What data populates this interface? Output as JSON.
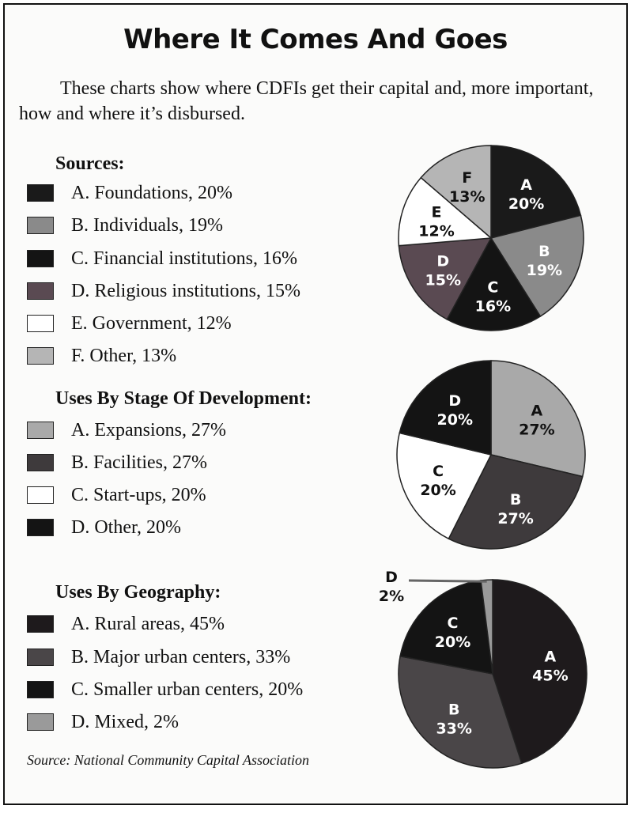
{
  "title": "Where It Comes And Goes",
  "intro": "These charts show where CDFIs get their capital and, more important, how and where it’s disbursed.",
  "source": "Source: National Community Capital Association",
  "colors": {
    "A_dark": "#1a1a1a",
    "B_gray": "#8a8a8a",
    "C_black": "#141414",
    "D_maroon": "#5a4a52",
    "E_white": "#ffffff",
    "F_light": "#b5b5b5"
  },
  "chart_data": [
    {
      "type": "pie",
      "title": "Sources:",
      "categories": [
        "A. Foundations, 20%",
        "B. Individuals, 19%",
        "C. Financial institutions, 16%",
        "D. Religious institutions, 15%",
        "E. Government, 12%",
        "F. Other, 13%"
      ],
      "letters": [
        "A",
        "B",
        "C",
        "D",
        "E",
        "F"
      ],
      "values": [
        20,
        19,
        16,
        15,
        12,
        13
      ],
      "value_labels": [
        "20%",
        "19%",
        "16%",
        "15%",
        "12%",
        "13%"
      ],
      "colors": [
        "#1a1a1a",
        "#8a8a8a",
        "#141414",
        "#5a4a52",
        "#ffffff",
        "#b5b5b5"
      ],
      "label_colors": [
        "#ffffff",
        "#ffffff",
        "#ffffff",
        "#ffffff",
        "#111111",
        "#111111"
      ]
    },
    {
      "type": "pie",
      "title": "Uses By Stage Of Development:",
      "categories": [
        "A. Expansions, 27%",
        "B. Facilities, 27%",
        "C. Start-ups, 20%",
        "D. Other, 20%"
      ],
      "letters": [
        "A",
        "B",
        "C",
        "D"
      ],
      "values": [
        27,
        27,
        20,
        20
      ],
      "value_labels": [
        "27%",
        "27%",
        "20%",
        "20%"
      ],
      "colors": [
        "#a9a9a9",
        "#3e3a3c",
        "#ffffff",
        "#141414"
      ],
      "label_colors": [
        "#111111",
        "#ffffff",
        "#111111",
        "#ffffff"
      ]
    },
    {
      "type": "pie",
      "title": "Uses By Geography:",
      "categories": [
        "A. Rural areas, 45%",
        "B. Major urban centers, 33%",
        "C. Smaller urban centers, 20%",
        "D. Mixed, 2%"
      ],
      "letters": [
        "A",
        "B",
        "C",
        "D"
      ],
      "values": [
        45,
        33,
        20,
        2
      ],
      "value_labels": [
        "45%",
        "33%",
        "20%",
        "2%"
      ],
      "colors": [
        "#1e1a1c",
        "#4a4648",
        "#141414",
        "#9a9a9a"
      ],
      "label_colors": [
        "#ffffff",
        "#ffffff",
        "#ffffff",
        "#111111"
      ]
    }
  ]
}
